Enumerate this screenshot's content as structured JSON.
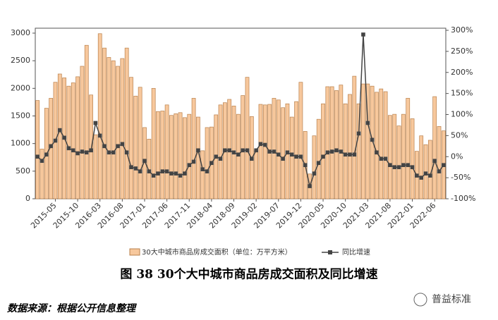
{
  "chart_data": {
    "type": "bar_line",
    "categories": [
      null,
      null,
      null,
      null,
      "2015-05",
      null,
      null,
      null,
      null,
      "2015-10",
      null,
      null,
      null,
      null,
      "2016-03",
      null,
      null,
      null,
      null,
      "2016-08",
      null,
      null,
      null,
      null,
      "2017-01",
      null,
      null,
      null,
      null,
      "2017-06",
      null,
      null,
      null,
      null,
      "2017-11",
      null,
      null,
      null,
      null,
      "2018-04",
      null,
      null,
      null,
      null,
      "2018-09",
      null,
      null,
      null,
      null,
      "2019-02",
      null,
      null,
      null,
      null,
      "2019-07",
      null,
      null,
      null,
      null,
      "2019-12",
      null,
      null,
      null,
      null,
      "2020-05",
      null,
      null,
      null,
      null,
      "2020-10",
      null,
      null,
      null,
      null,
      "2021-03",
      null,
      null,
      null,
      null,
      "2021-08",
      null,
      null,
      null,
      null,
      "2022-01",
      null,
      null,
      null,
      null,
      "2022-06",
      null,
      null
    ],
    "series": [
      {
        "name": "30大中城市商品房成交面积（单位：万平方米）",
        "color": "#f7c89d",
        "values": [
          1780,
          900,
          1640,
          1820,
          2110,
          2260,
          2190,
          2040,
          2100,
          2210,
          2400,
          2780,
          1880,
          1160,
          2990,
          2730,
          2560,
          2500,
          2400,
          2540,
          2730,
          2200,
          1860,
          2020,
          1290,
          1080,
          2000,
          1580,
          1590,
          1700,
          1510,
          1540,
          1560,
          1470,
          1530,
          1820,
          1480,
          870,
          1290,
          1300,
          1520,
          1700,
          1740,
          1800,
          1680,
          1530,
          1870,
          2200,
          1490,
          870,
          1710,
          1700,
          1710,
          1820,
          1790,
          1650,
          1720,
          1480,
          1760,
          2110,
          1220,
          450,
          1140,
          1440,
          1720,
          2030,
          2030,
          1960,
          2060,
          1720,
          1890,
          2220,
          1720,
          2080,
          2080,
          2040,
          1930,
          1990,
          1940,
          1510,
          1530,
          1320,
          1530,
          1820,
          1450,
          860,
          1140,
          980,
          1060,
          1850,
          1310,
          1230
        ]
      },
      {
        "name": "同比增速",
        "color": "#444444",
        "axis": "y2",
        "values": [
          0,
          -10,
          5,
          25,
          38,
          63,
          45,
          20,
          15,
          8,
          12,
          10,
          15,
          80,
          50,
          25,
          10,
          10,
          25,
          30,
          10,
          -25,
          -28,
          -35,
          -10,
          -35,
          -45,
          -40,
          -35,
          -35,
          -40,
          -40,
          -45,
          -40,
          -20,
          -12,
          15,
          -30,
          -35,
          -15,
          0,
          -5,
          15,
          15,
          10,
          5,
          15,
          15,
          -5,
          15,
          30,
          28,
          12,
          12,
          5,
          -5,
          10,
          5,
          0,
          0,
          -20,
          -70,
          -40,
          -15,
          0,
          10,
          12,
          15,
          12,
          5,
          5,
          5,
          55,
          290,
          80,
          40,
          10,
          -5,
          -5,
          -20,
          -25,
          -25,
          -20,
          -20,
          -25,
          -45,
          -50,
          -40,
          -45,
          -10,
          -35,
          -20
        ]
      }
    ],
    "ylim": [
      0,
      3000
    ],
    "yticks": [
      0,
      500,
      1000,
      1500,
      2000,
      2500,
      3000
    ],
    "y2lim": [
      -100,
      300
    ],
    "y2ticks": [
      {
        "value": -100,
        "label": "-100%"
      },
      {
        "value": -50,
        "label": "-50%"
      },
      {
        "value": 0,
        "label": "0%"
      },
      {
        "value": 50,
        "label": "50%"
      },
      {
        "value": 100,
        "label": "100%"
      },
      {
        "value": 150,
        "label": "150%"
      },
      {
        "value": 200,
        "label": "200%"
      },
      {
        "value": 250,
        "label": "250%"
      },
      {
        "value": 300,
        "label": "300%"
      }
    ],
    "title": "图 38   30个大中城市商品房成交面积及同比增速",
    "source": "数据来源：根据公开信息整理",
    "watermark": "普益标准"
  }
}
